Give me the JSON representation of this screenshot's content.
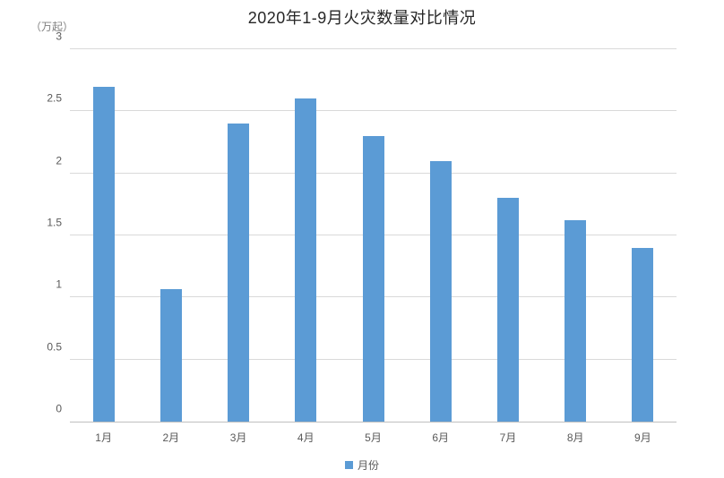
{
  "chart_data": {
    "type": "bar",
    "title": "2020年1-9月火灾数量对比情况",
    "y_unit_label": "（万起）",
    "categories": [
      "1月",
      "2月",
      "3月",
      "4月",
      "5月",
      "6月",
      "7月",
      "8月",
      "9月"
    ],
    "values": [
      2.7,
      1.07,
      2.4,
      2.6,
      2.3,
      2.1,
      1.8,
      1.62,
      1.4
    ],
    "series_name": "月份",
    "xlabel": "",
    "ylabel": "（万起）",
    "ylim": [
      0,
      3
    ],
    "ytick_step": 0.5,
    "ytick_labels": [
      "0",
      "0.5",
      "1",
      "1.5",
      "2",
      "2.5",
      "3"
    ],
    "grid": "horizontal",
    "legend_position": "bottom-center",
    "colors": {
      "bar": "#5b9bd5",
      "gridline": "#d9d9d9",
      "axis_line": "#bfbfbf",
      "tick_text": "#595959",
      "unit_text": "#808080",
      "title_text": "#262626"
    }
  },
  "legend": {
    "label": "月份"
  }
}
